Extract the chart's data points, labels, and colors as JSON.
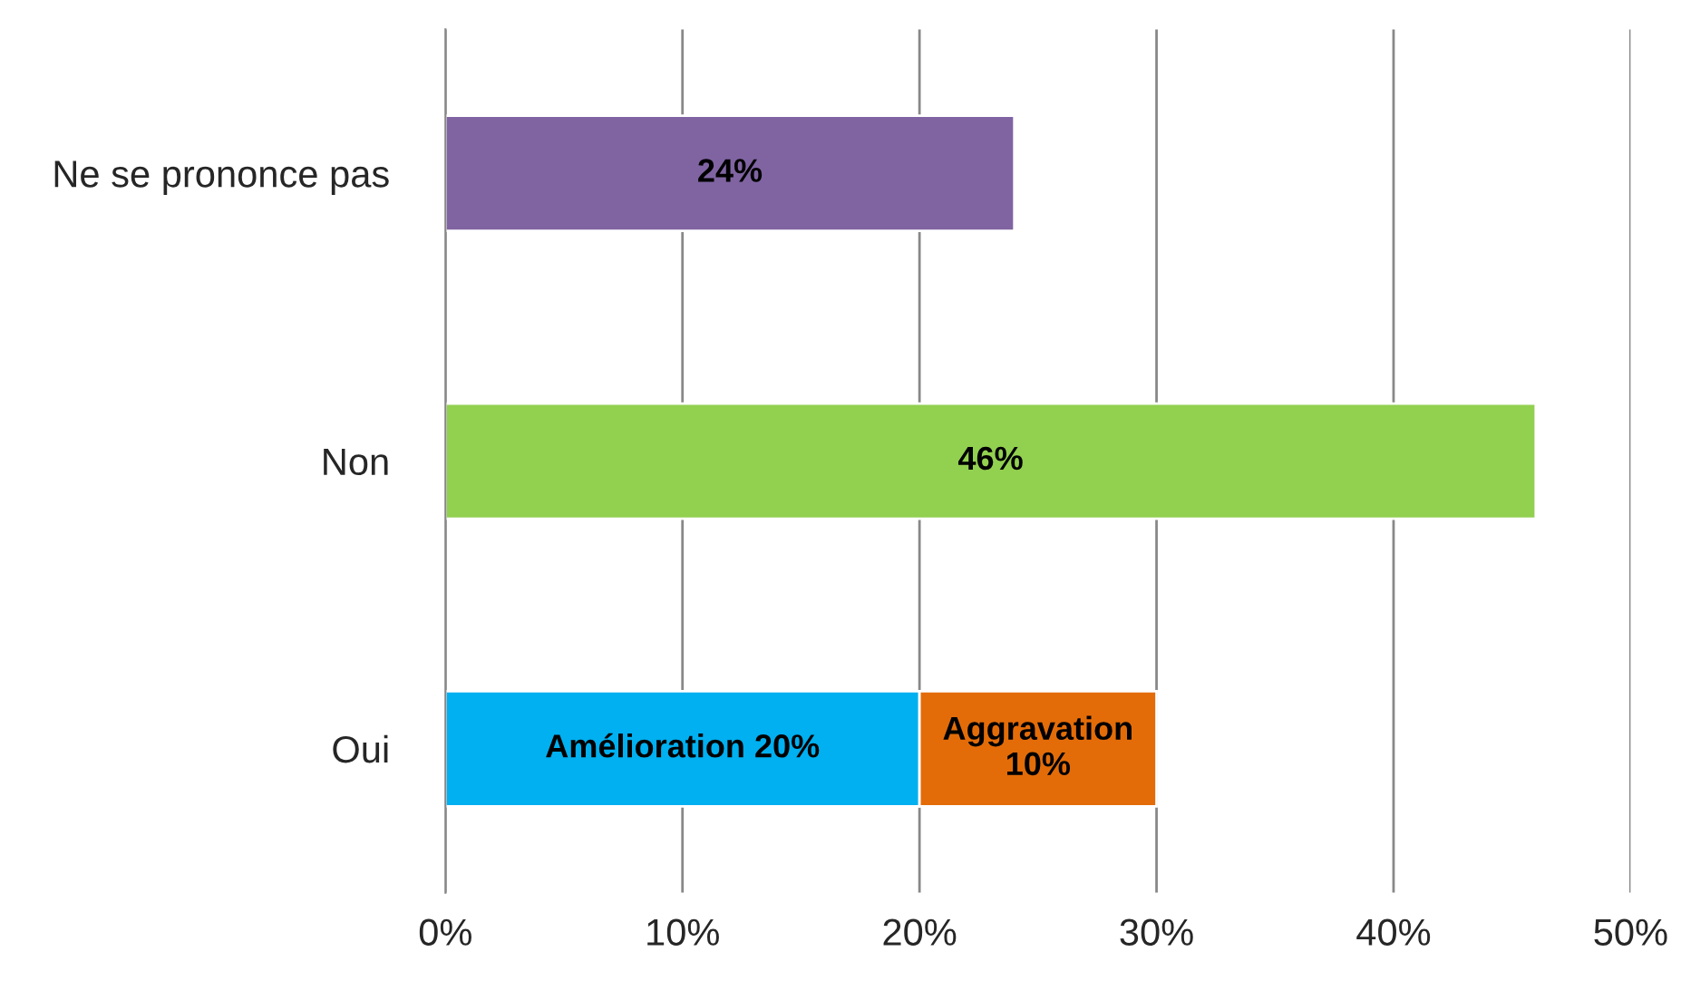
{
  "chart_data": {
    "type": "bar",
    "orientation": "horizontal",
    "stacked": true,
    "categories": [
      "Ne se prononce pas",
      "Non",
      "Oui"
    ],
    "series": [
      {
        "colors": [
          "#8064a2",
          "#92d050",
          "#00b0f0"
        ],
        "values": [
          24,
          46,
          20
        ],
        "value_labels": [
          "24%",
          "46%",
          "Amélioration 20%"
        ]
      },
      {
        "color": "#e36c09",
        "values": [
          null,
          null,
          10
        ],
        "value_labels": [
          null,
          null,
          "Aggravation\n10%"
        ]
      }
    ],
    "xlim": [
      0,
      50
    ],
    "xticks": [
      {
        "value": 0,
        "label": "0%"
      },
      {
        "value": 10,
        "label": "10%"
      },
      {
        "value": 20,
        "label": "20%"
      },
      {
        "value": 30,
        "label": "30%"
      },
      {
        "value": 40,
        "label": "40%"
      },
      {
        "value": 50,
        "label": "50%"
      }
    ],
    "grid": "x",
    "legend": false
  }
}
